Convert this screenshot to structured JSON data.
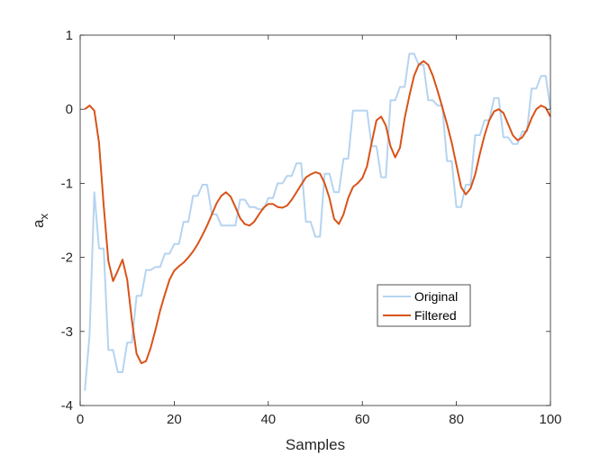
{
  "chart_data": {
    "type": "line",
    "title": "",
    "xlabel": "Samples",
    "ylabel_main": "a",
    "ylabel_sub": "x",
    "xlim": [
      0,
      100
    ],
    "ylim": [
      -4,
      1
    ],
    "xticks": [
      0,
      20,
      40,
      60,
      80,
      100
    ],
    "yticks": [
      -4,
      -3,
      -2,
      -1,
      0,
      1
    ],
    "grid": false,
    "box": true,
    "legend_position": "lower-right-center",
    "series": [
      {
        "name": "Original",
        "color": "#b5d4f0",
        "x": [
          1,
          2,
          3,
          4,
          5,
          6,
          7,
          8,
          9,
          10,
          11,
          12,
          13,
          14,
          15,
          16,
          17,
          18,
          19,
          20,
          21,
          22,
          23,
          24,
          25,
          26,
          27,
          28,
          29,
          30,
          31,
          32,
          33,
          34,
          35,
          36,
          37,
          38,
          39,
          40,
          41,
          42,
          43,
          44,
          45,
          46,
          47,
          48,
          49,
          50,
          51,
          52,
          53,
          54,
          55,
          56,
          57,
          58,
          59,
          60,
          61,
          62,
          63,
          64,
          65,
          66,
          67,
          68,
          69,
          70,
          71,
          72,
          73,
          74,
          75,
          76,
          77,
          78,
          79,
          80,
          81,
          82,
          83,
          84,
          85,
          86,
          87,
          88,
          89,
          90,
          91,
          92,
          93,
          94,
          95,
          96,
          97,
          98,
          99,
          100
        ],
        "y": [
          -3.8,
          -3.05,
          -1.12,
          -1.88,
          -1.88,
          -3.25,
          -3.25,
          -3.55,
          -3.55,
          -3.15,
          -3.15,
          -2.52,
          -2.52,
          -2.17,
          -2.17,
          -2.13,
          -2.13,
          -1.95,
          -1.95,
          -1.82,
          -1.82,
          -1.52,
          -1.52,
          -1.17,
          -1.17,
          -1.02,
          -1.02,
          -1.42,
          -1.42,
          -1.57,
          -1.57,
          -1.57,
          -1.57,
          -1.22,
          -1.22,
          -1.32,
          -1.32,
          -1.35,
          -1.35,
          -1.2,
          -1.2,
          -1.0,
          -1.0,
          -0.9,
          -0.9,
          -0.73,
          -0.73,
          -1.52,
          -1.52,
          -1.72,
          -1.72,
          -0.87,
          -0.87,
          -1.12,
          -1.12,
          -0.67,
          -0.67,
          -0.02,
          -0.02,
          -0.02,
          -0.02,
          -0.5,
          -0.5,
          -0.92,
          -0.92,
          0.12,
          0.12,
          0.3,
          0.3,
          0.75,
          0.75,
          0.6,
          0.6,
          0.12,
          0.12,
          0.05,
          0.05,
          -0.7,
          -0.7,
          -1.32,
          -1.32,
          -1.02,
          -1.02,
          -0.35,
          -0.35,
          -0.15,
          -0.15,
          0.15,
          0.15,
          -0.38,
          -0.38,
          -0.47,
          -0.47,
          -0.3,
          -0.3,
          0.28,
          0.28,
          0.45,
          0.45,
          0.0
        ]
      },
      {
        "name": "Filtered",
        "color": "#d95319",
        "x": [
          1,
          2,
          3,
          4,
          5,
          6,
          7,
          8,
          9,
          10,
          11,
          12,
          13,
          14,
          15,
          16,
          17,
          18,
          19,
          20,
          21,
          22,
          23,
          24,
          25,
          26,
          27,
          28,
          29,
          30,
          31,
          32,
          33,
          34,
          35,
          36,
          37,
          38,
          39,
          40,
          41,
          42,
          43,
          44,
          45,
          46,
          47,
          48,
          49,
          50,
          51,
          52,
          53,
          54,
          55,
          56,
          57,
          58,
          59,
          60,
          61,
          62,
          63,
          64,
          65,
          66,
          67,
          68,
          69,
          70,
          71,
          72,
          73,
          74,
          75,
          76,
          77,
          78,
          79,
          80,
          81,
          82,
          83,
          84,
          85,
          86,
          87,
          88,
          89,
          90,
          91,
          92,
          93,
          94,
          95,
          96,
          97,
          98,
          99,
          100
        ],
        "y": [
          0.0,
          0.05,
          -0.02,
          -0.45,
          -1.3,
          -2.05,
          -2.32,
          -2.18,
          -2.03,
          -2.3,
          -2.85,
          -3.3,
          -3.43,
          -3.4,
          -3.22,
          -2.98,
          -2.72,
          -2.5,
          -2.3,
          -2.18,
          -2.12,
          -2.07,
          -2.0,
          -1.92,
          -1.82,
          -1.7,
          -1.57,
          -1.42,
          -1.27,
          -1.17,
          -1.12,
          -1.18,
          -1.32,
          -1.47,
          -1.55,
          -1.57,
          -1.52,
          -1.42,
          -1.33,
          -1.28,
          -1.28,
          -1.32,
          -1.33,
          -1.3,
          -1.22,
          -1.12,
          -1.02,
          -0.92,
          -0.88,
          -0.85,
          -0.87,
          -1.0,
          -1.2,
          -1.48,
          -1.55,
          -1.42,
          -1.2,
          -1.05,
          -1.0,
          -0.93,
          -0.77,
          -0.45,
          -0.15,
          -0.1,
          -0.22,
          -0.5,
          -0.65,
          -0.52,
          -0.12,
          0.18,
          0.45,
          0.6,
          0.65,
          0.6,
          0.45,
          0.25,
          0.03,
          -0.2,
          -0.45,
          -0.75,
          -1.05,
          -1.15,
          -1.07,
          -0.88,
          -0.6,
          -0.35,
          -0.15,
          -0.03,
          0.0,
          -0.05,
          -0.2,
          -0.35,
          -0.42,
          -0.38,
          -0.28,
          -0.12,
          0.0,
          0.05,
          0.02,
          -0.1
        ]
      }
    ]
  }
}
